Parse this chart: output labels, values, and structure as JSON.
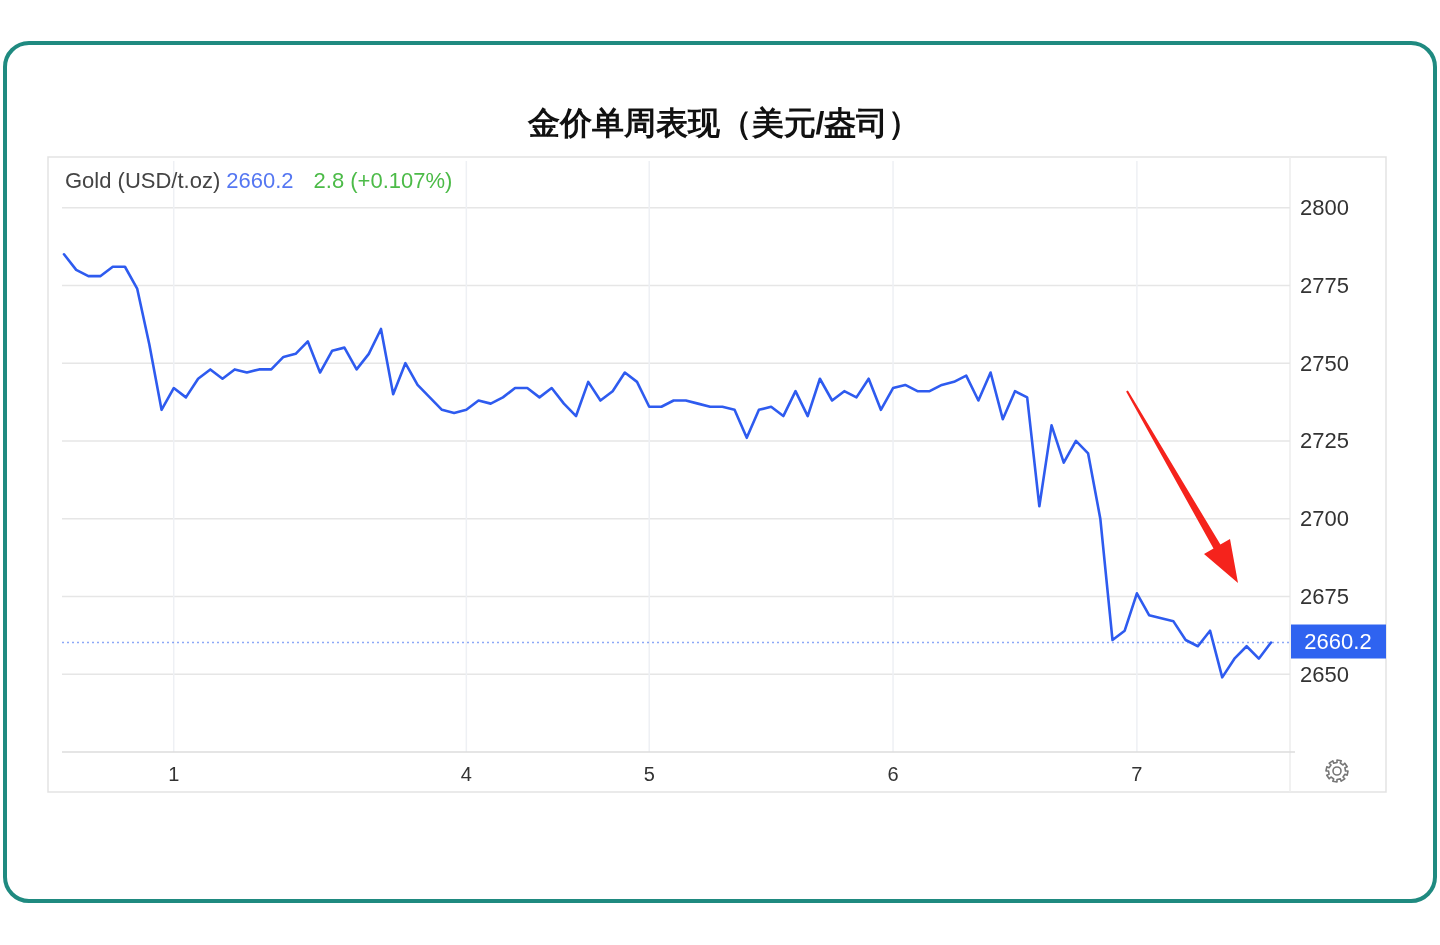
{
  "chart_data": {
    "type": "line",
    "title": "金价单周表现（美元/盎司）",
    "annotations": [
      "Gold (USD/t.oz)",
      "2660.2",
      "2.8 (+0.107%)"
    ],
    "categories": [
      null,
      null,
      null,
      null,
      null,
      null,
      null,
      null,
      null,
      "1",
      null,
      null,
      null,
      null,
      null,
      null,
      null,
      null,
      null,
      null,
      null,
      null,
      null,
      null,
      null,
      null,
      null,
      null,
      null,
      null,
      null,
      null,
      null,
      "4",
      null,
      null,
      null,
      null,
      null,
      null,
      null,
      null,
      null,
      null,
      null,
      null,
      null,
      null,
      "5",
      null,
      null,
      null,
      null,
      null,
      null,
      null,
      null,
      null,
      null,
      null,
      null,
      null,
      null,
      null,
      null,
      null,
      null,
      null,
      "6",
      null,
      null,
      null,
      null,
      null,
      null,
      null,
      null,
      null,
      null,
      null,
      null,
      null,
      null,
      null,
      null,
      null,
      null,
      null,
      "7",
      null,
      null,
      null,
      null,
      null,
      null,
      null,
      null,
      null,
      null,
      null
    ],
    "series": [
      {
        "color": "#2e5bef",
        "values": [
          2785,
          2780,
          2778,
          2778,
          2781,
          2781,
          2774,
          2756,
          2735,
          2742,
          2739,
          2745,
          2748,
          2745,
          2748,
          2747,
          2748,
          2748,
          2752,
          2753,
          2757,
          2747,
          2754,
          2755,
          2748,
          2753,
          2761,
          2740,
          2750,
          2743,
          2739,
          2735,
          2734,
          2735,
          2738,
          2737,
          2739,
          2742,
          2742,
          2739,
          2742,
          2737,
          2733,
          2744,
          2738,
          2741,
          2747,
          2744,
          2736,
          2736,
          2738,
          2738,
          2737,
          2736,
          2736,
          2735,
          2726,
          2735,
          2736,
          2733,
          2741,
          2733,
          2745,
          2738,
          2741,
          2739,
          2745,
          2735,
          2742,
          2743,
          2741,
          2741,
          2743,
          2744,
          2746,
          2738,
          2747,
          2732,
          2741,
          2739,
          2704,
          2730,
          2718,
          2725,
          2721,
          2700,
          2661,
          2664,
          2676,
          2669,
          2668,
          2667,
          2661,
          2659,
          2664,
          2649,
          2655,
          2659,
          2655,
          2660.2
        ]
      }
    ],
    "ylim": [
      2625,
      2815
    ],
    "yticks": [
      2650,
      2675,
      2700,
      2725,
      2750,
      2775,
      2800
    ],
    "grid": true,
    "marker": "none",
    "line_style": "solid",
    "ref_lines": [
      {
        "axis": "y",
        "value": 2660.2,
        "label": "2660.2",
        "color": "#2f63f0",
        "line_style": "dotted"
      }
    ]
  }
}
